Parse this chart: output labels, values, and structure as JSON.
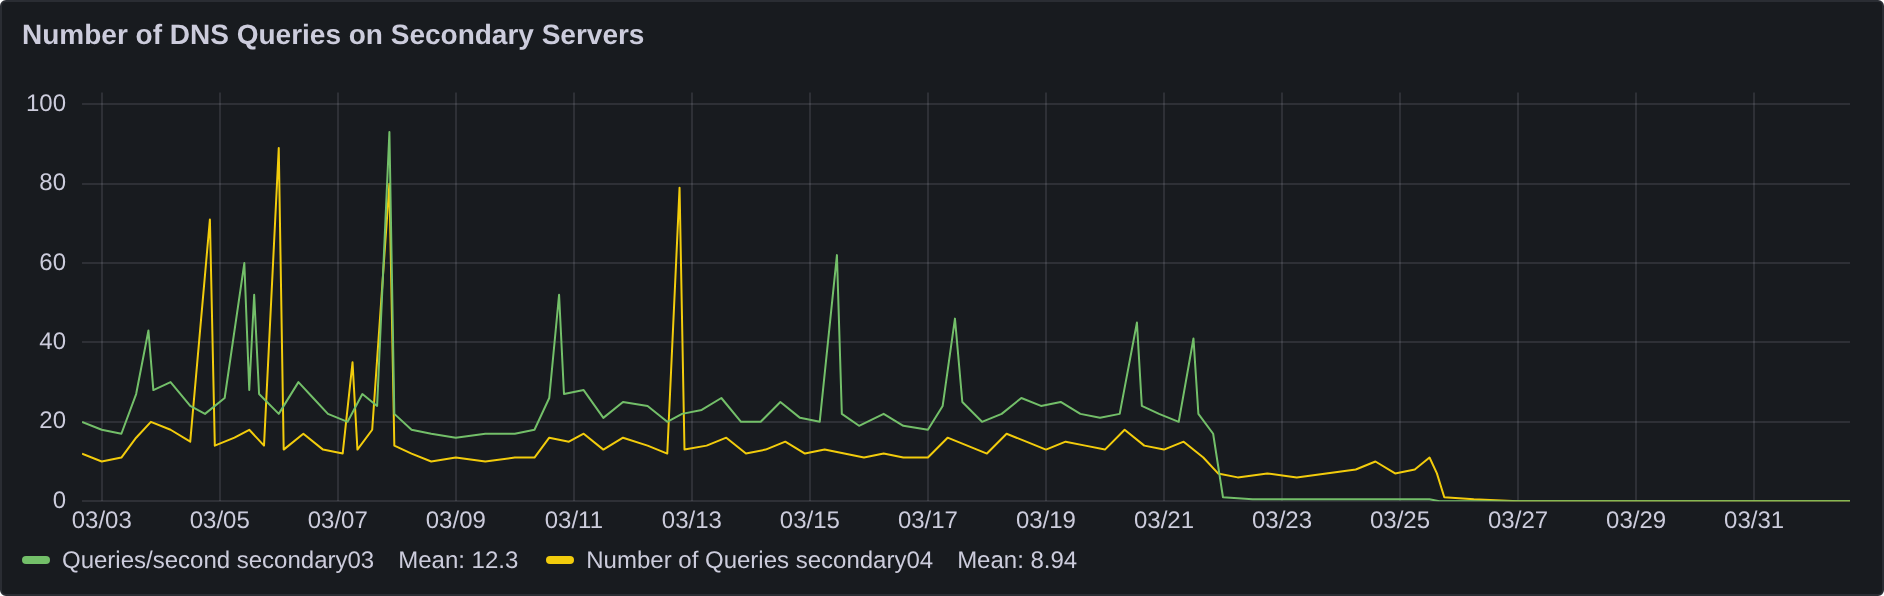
{
  "chart_data": {
    "type": "line",
    "title": "Number of DNS Queries on Secondary Servers",
    "xlim": [
      "--03-02T16:00",
      "--04-01T15:00"
    ],
    "xticks": [
      {
        "value": "--03-03",
        "label": "03/03"
      },
      {
        "value": "--03-05",
        "label": "03/05"
      },
      {
        "value": "--03-07",
        "label": "03/07"
      },
      {
        "value": "--03-09",
        "label": "03/09"
      },
      {
        "value": "--03-11",
        "label": "03/11"
      },
      {
        "value": "--03-13",
        "label": "03/13"
      },
      {
        "value": "--03-15",
        "label": "03/15"
      },
      {
        "value": "--03-17",
        "label": "03/17"
      },
      {
        "value": "--03-19",
        "label": "03/19"
      },
      {
        "value": "--03-21",
        "label": "03/21"
      },
      {
        "value": "--03-23",
        "label": "03/23"
      },
      {
        "value": "--03-25",
        "label": "03/25"
      },
      {
        "value": "--03-27",
        "label": "03/27"
      },
      {
        "value": "--03-29",
        "label": "03/29"
      },
      {
        "value": "--03-31",
        "label": "03/31"
      }
    ],
    "ylim": [
      0,
      103
    ],
    "yticks": [
      0,
      20,
      40,
      60,
      80,
      100
    ],
    "grid": true,
    "legend": "bottom",
    "marker": "none",
    "line_style": "solid",
    "annotations": [
      "Mean: 12.3",
      "Mean: 8.94"
    ],
    "series": [
      {
        "name": "Queries/second secondary03",
        "color": "#73bf69",
        "x": [
          "--03-02T16:00",
          "--03-03T00:00",
          "--03-03T08:00",
          "--03-03T14:00",
          "--03-03T19:00",
          "--03-03T21:00",
          "--03-04T04:00",
          "--03-04T12:00",
          "--03-04T18:00",
          "--03-05T02:00",
          "--03-05T10:00",
          "--03-05T12:00",
          "--03-05T14:00",
          "--03-05T16:00",
          "--03-06T00:00",
          "--03-06T08:00",
          "--03-06T14:00",
          "--03-06T20:00",
          "--03-07T04:00",
          "--03-07T10:00",
          "--03-07T16:00",
          "--03-07T21:00",
          "--03-07T23:00",
          "--03-08T06:00",
          "--03-08T14:00",
          "--03-09T00:00",
          "--03-09T12:00",
          "--03-10T00:00",
          "--03-10T08:00",
          "--03-10T14:00",
          "--03-10T18:00",
          "--03-10T20:00",
          "--03-11T04:00",
          "--03-11T12:00",
          "--03-11T20:00",
          "--03-12T06:00",
          "--03-12T14:00",
          "--03-12T20:00",
          "--03-13T04:00",
          "--03-13T12:00",
          "--03-13T20:00",
          "--03-14T04:00",
          "--03-14T12:00",
          "--03-14T20:00",
          "--03-15T04:00",
          "--03-15T11:00",
          "--03-15T13:00",
          "--03-15T20:00",
          "--03-16T06:00",
          "--03-16T14:00",
          "--03-17T00:00",
          "--03-17T06:00",
          "--03-17T11:00",
          "--03-17T14:00",
          "--03-17T22:00",
          "--03-18T06:00",
          "--03-18T14:00",
          "--03-18T22:00",
          "--03-19T06:00",
          "--03-19T14:00",
          "--03-19T22:00",
          "--03-20T06:00",
          "--03-20T13:00",
          "--03-20T15:00",
          "--03-20T22:00",
          "--03-21T06:00",
          "--03-21T12:00",
          "--03-21T14:00",
          "--03-21T20:00",
          "--03-22T00:00",
          "--03-22T12:00",
          "--03-23T12:00",
          "--03-24T12:00",
          "--03-25T12:00",
          "--03-25T16:00",
          "--04-01T15:00"
        ],
        "values": [
          20,
          18,
          17,
          27,
          43,
          28,
          30,
          24,
          22,
          26,
          60,
          28,
          52,
          27,
          22,
          30,
          26,
          22,
          20,
          27,
          24,
          93,
          22,
          18,
          17,
          16,
          17,
          17,
          18,
          26,
          52,
          27,
          28,
          21,
          25,
          24,
          20,
          22,
          23,
          26,
          20,
          20,
          25,
          21,
          20,
          62,
          22,
          19,
          22,
          19,
          18,
          24,
          46,
          25,
          20,
          22,
          26,
          24,
          25,
          22,
          21,
          22,
          45,
          24,
          22,
          20,
          41,
          22,
          17,
          1,
          0.5,
          0.5,
          0.5,
          0.5,
          0,
          0
        ]
      },
      {
        "name": "Number of Queries secondary04",
        "color": "#f2cc0c",
        "x": [
          "--03-02T16:00",
          "--03-03T00:00",
          "--03-03T08:00",
          "--03-03T14:00",
          "--03-03T20:00",
          "--03-04T04:00",
          "--03-04T12:00",
          "--03-04T20:00",
          "--03-04T22:00",
          "--03-05T06:00",
          "--03-05T12:00",
          "--03-05T18:00",
          "--03-06T00:00",
          "--03-06T02:00",
          "--03-06T10:00",
          "--03-06T18:00",
          "--03-07T02:00",
          "--03-07T06:00",
          "--03-07T08:00",
          "--03-07T14:00",
          "--03-07T21:00",
          "--03-07T23:00",
          "--03-08T06:00",
          "--03-08T14:00",
          "--03-09T00:00",
          "--03-09T12:00",
          "--03-10T00:00",
          "--03-10T08:00",
          "--03-10T14:00",
          "--03-10T22:00",
          "--03-11T04:00",
          "--03-11T12:00",
          "--03-11T20:00",
          "--03-12T06:00",
          "--03-12T14:00",
          "--03-12T19:00",
          "--03-12T21:00",
          "--03-13T06:00",
          "--03-13T14:00",
          "--03-13T22:00",
          "--03-14T06:00",
          "--03-14T14:00",
          "--03-14T22:00",
          "--03-15T06:00",
          "--03-15T14:00",
          "--03-15T22:00",
          "--03-16T06:00",
          "--03-16T14:00",
          "--03-17T00:00",
          "--03-17T08:00",
          "--03-17T16:00",
          "--03-18T00:00",
          "--03-18T08:00",
          "--03-18T16:00",
          "--03-19T00:00",
          "--03-19T08:00",
          "--03-19T16:00",
          "--03-20T00:00",
          "--03-20T08:00",
          "--03-20T16:00",
          "--03-21T00:00",
          "--03-21T08:00",
          "--03-21T16:00",
          "--03-21T22:00",
          "--03-22T06:00",
          "--03-22T18:00",
          "--03-23T06:00",
          "--03-23T18:00",
          "--03-24T06:00",
          "--03-24T14:00",
          "--03-24T22:00",
          "--03-25T06:00",
          "--03-25T12:00",
          "--03-25T15:00",
          "--03-25T18:00",
          "--03-26T06:00",
          "--03-27T00:00",
          "--04-01T15:00"
        ],
        "values": [
          12,
          10,
          11,
          16,
          20,
          18,
          15,
          71,
          14,
          16,
          18,
          14,
          89,
          13,
          17,
          13,
          12,
          35,
          13,
          18,
          80,
          14,
          12,
          10,
          11,
          10,
          11,
          11,
          16,
          15,
          17,
          13,
          16,
          14,
          12,
          79,
          13,
          14,
          16,
          12,
          13,
          15,
          12,
          13,
          12,
          11,
          12,
          11,
          11,
          16,
          14,
          12,
          17,
          15,
          13,
          15,
          14,
          13,
          18,
          14,
          13,
          15,
          11,
          7,
          6,
          7,
          6,
          7,
          8,
          10,
          7,
          8,
          11,
          7,
          1,
          0.5,
          0,
          0
        ]
      }
    ]
  }
}
